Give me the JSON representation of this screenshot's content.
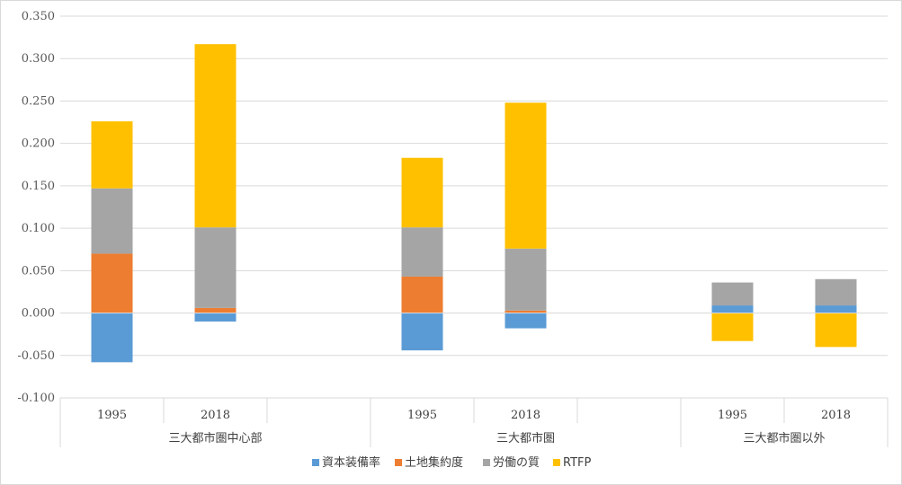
{
  "chart_data": {
    "type": "bar",
    "stacked": true,
    "ylim": [
      -0.1,
      0.35
    ],
    "yticks": [
      "0.350",
      "0.300",
      "0.250",
      "0.200",
      "0.150",
      "0.100",
      "0.050",
      "0.000",
      "-0.050",
      "-0.100"
    ],
    "ytick_values": [
      0.35,
      0.3,
      0.25,
      0.2,
      0.15,
      0.1,
      0.05,
      0.0,
      -0.05,
      -0.1
    ],
    "grid": true,
    "legend_position": "bottom",
    "groups": [
      {
        "label": "三大都市圏中心部",
        "years": [
          "1995",
          "2018"
        ]
      },
      {
        "label": "三大都市圏",
        "years": [
          "1995",
          "2018"
        ]
      },
      {
        "label": "三大都市圏以外",
        "years": [
          "1995",
          "2018"
        ]
      }
    ],
    "categories": [
      "1995",
      "2018",
      "",
      "1995",
      "2018",
      "",
      "1995",
      "2018"
    ],
    "series": [
      {
        "name": "資本装備率",
        "color": "#5b9bd5",
        "values": [
          -0.058,
          -0.01,
          null,
          -0.044,
          -0.018,
          null,
          0.009,
          0.009
        ]
      },
      {
        "name": "土地集約度",
        "color": "#ed7d31",
        "values": [
          0.07,
          0.006,
          null,
          0.043,
          0.003,
          null,
          0.0,
          0.0
        ]
      },
      {
        "name": "労働の質",
        "color": "#a5a5a5",
        "values": [
          0.077,
          0.095,
          null,
          0.058,
          0.073,
          null,
          0.027,
          0.031
        ]
      },
      {
        "name": "RTFP",
        "color": "#ffc000",
        "values": [
          0.079,
          0.216,
          null,
          0.082,
          0.172,
          null,
          -0.033,
          -0.04
        ]
      }
    ]
  }
}
